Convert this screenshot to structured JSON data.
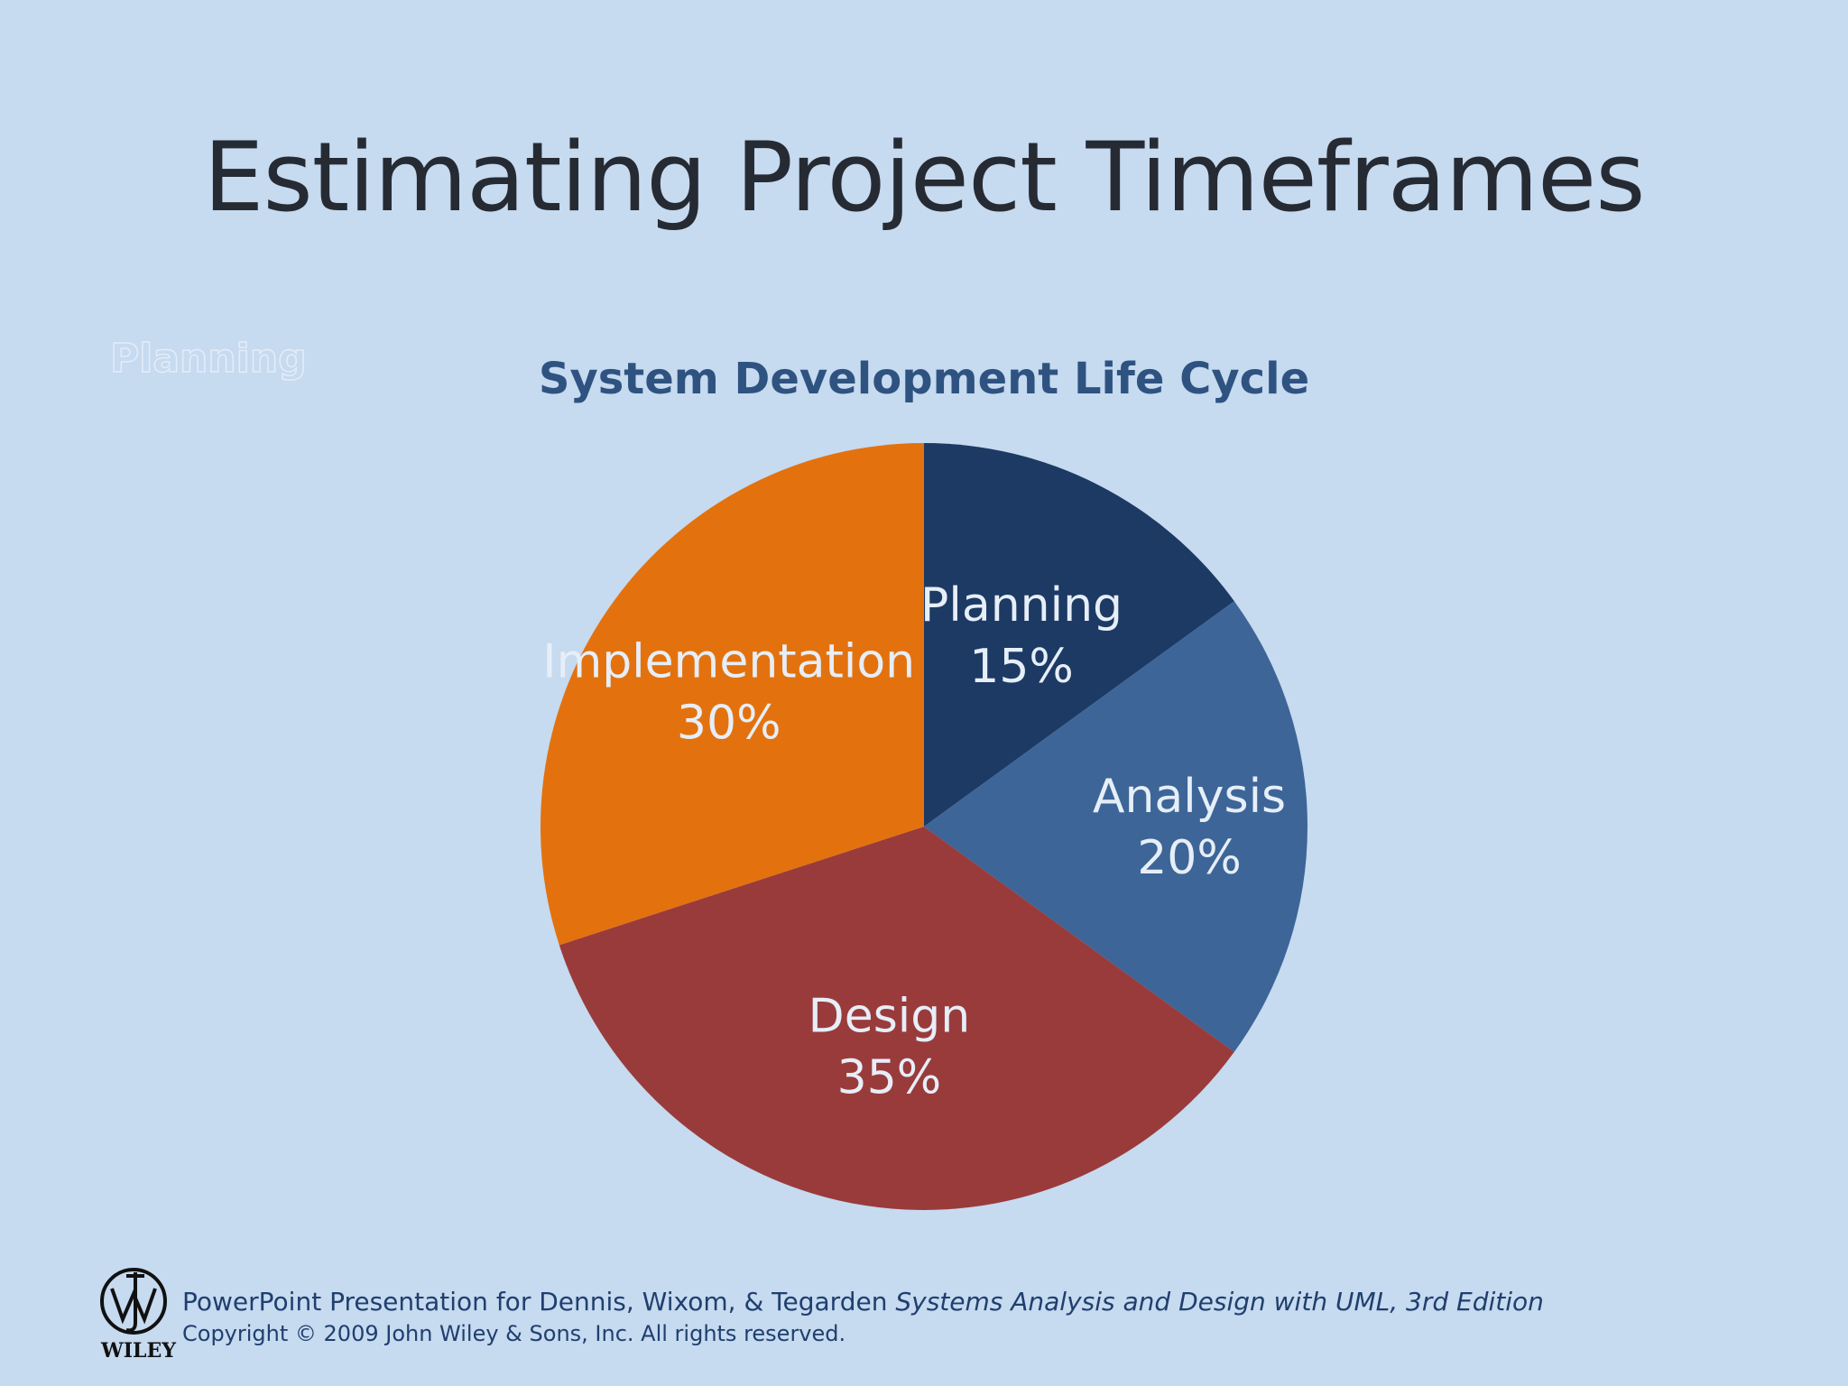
{
  "slide": {
    "title": "Estimating Project Timeframes",
    "ghost_label": "Planning"
  },
  "chart_data": {
    "type": "pie",
    "title": "System Development Life Cycle",
    "categories": [
      "Planning",
      "Analysis",
      "Design",
      "Implementation"
    ],
    "values": [
      15,
      20,
      35,
      30
    ],
    "value_labels": [
      "15%",
      "20%",
      "35%",
      "30%"
    ],
    "colors": [
      "#1c3a63",
      "#3d6597",
      "#9a3b3b",
      "#e3720e"
    ],
    "label_color": "#e6eef8",
    "start_angle_deg": 0,
    "direction": "clockwise"
  },
  "footer": {
    "logo_text": "WILEY",
    "line1_prefix": "PowerPoint Presentation for Dennis, Wixom, & Tegarden ",
    "line1_title": "Systems Analysis and Design with UML, 3rd Edition",
    "line2": "Copyright © 2009 John Wiley & Sons, Inc.  All rights reserved."
  }
}
